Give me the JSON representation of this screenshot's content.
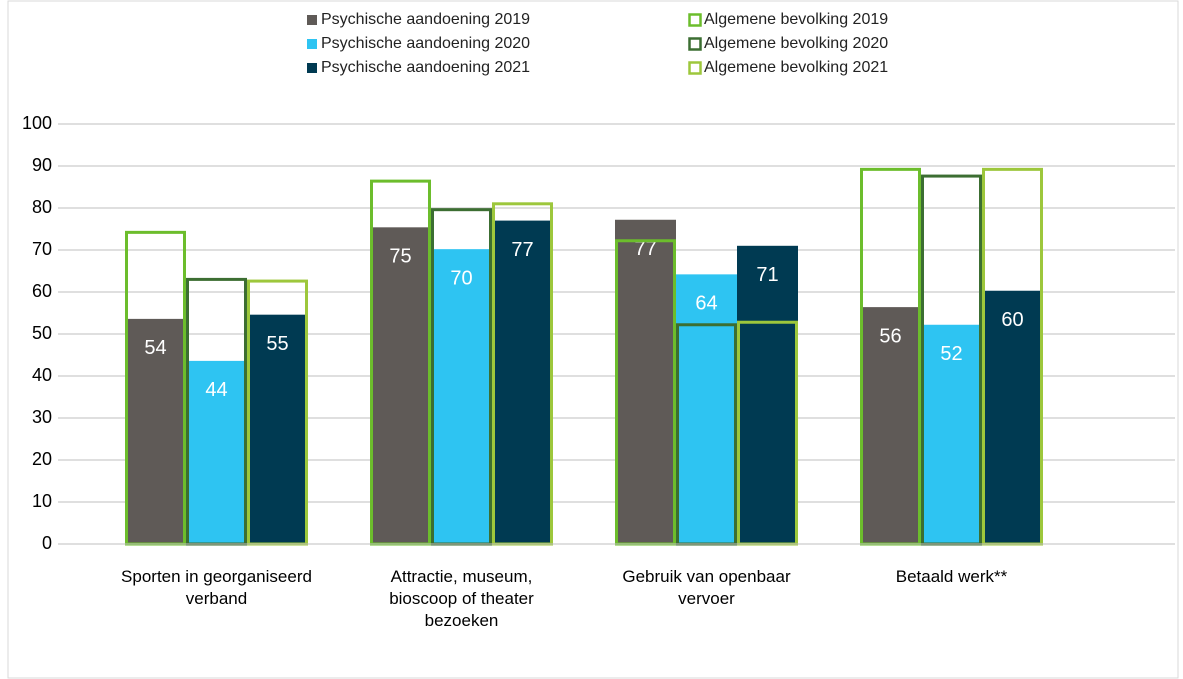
{
  "chart_data": {
    "type": "bar",
    "categories": [
      "Sporten in georganiseerd verband",
      "Attractie, museum, bioscoop of theater bezoeken",
      "Gebruik van openbaar vervoer",
      "Betaald werk**"
    ],
    "series": [
      {
        "name": "Psychische aandoening 2019",
        "color": "#5f5a57",
        "style": "filled",
        "values": [
          53.6,
          75.4,
          77.2,
          56.4
        ],
        "value_labels": [
          "54",
          "75",
          "77",
          "56"
        ]
      },
      {
        "name": "Psychische aandoening 2020",
        "color": "#2ec4f2",
        "style": "filled",
        "values": [
          43.6,
          70.2,
          64.2,
          52.2
        ],
        "value_labels": [
          "44",
          "70",
          "64",
          "52"
        ]
      },
      {
        "name": "Psychische aandoening 2021",
        "color": "#003a52",
        "style": "filled",
        "values": [
          54.6,
          77.0,
          71.0,
          60.3
        ],
        "value_labels": [
          "55",
          "77",
          "71",
          "60"
        ]
      },
      {
        "name": "Algemene bevolking 2019",
        "color": "#6cbd2c",
        "style": "outline",
        "values": [
          74.2,
          86.4,
          72.2,
          89.2
        ]
      },
      {
        "name": "Algemene bevolking 2020",
        "color": "#3c6e32",
        "style": "outline",
        "values": [
          63.0,
          79.6,
          52.2,
          87.6
        ]
      },
      {
        "name": "Algemene bevolking 2021",
        "color": "#9dc73c",
        "style": "outline",
        "values": [
          62.6,
          81.0,
          52.8,
          89.2
        ]
      }
    ],
    "ylim": [
      0,
      100
    ],
    "yticks": [
      0,
      10,
      20,
      30,
      40,
      50,
      60,
      70,
      80,
      90,
      100
    ],
    "grid": true,
    "legend": "top"
  }
}
